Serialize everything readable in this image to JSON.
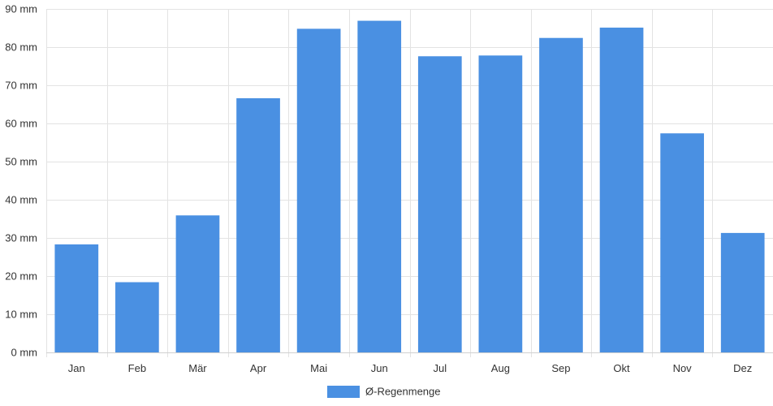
{
  "colors": {
    "bar": "#4a90e2",
    "grid": "#e3e3e3",
    "axis_text": "#333333",
    "background": "#ffffff"
  },
  "chart_data": {
    "type": "bar",
    "title": "",
    "xlabel": "",
    "ylabel": "",
    "categories": [
      "Jan",
      "Feb",
      "Mär",
      "Apr",
      "Mai",
      "Jun",
      "Jul",
      "Aug",
      "Sep",
      "Okt",
      "Nov",
      "Dez"
    ],
    "series": [
      {
        "name": "Ø-Regenmenge",
        "values": [
          28.3,
          18.4,
          35.9,
          66.6,
          84.8,
          86.9,
          77.6,
          77.8,
          82.4,
          85.1,
          57.4,
          31.3
        ]
      }
    ],
    "ylim": [
      0,
      90
    ],
    "yticks": [
      0,
      10,
      20,
      30,
      40,
      50,
      60,
      70,
      80,
      90
    ],
    "yunit": "mm",
    "grid": true,
    "legend_position": "bottom-center"
  }
}
